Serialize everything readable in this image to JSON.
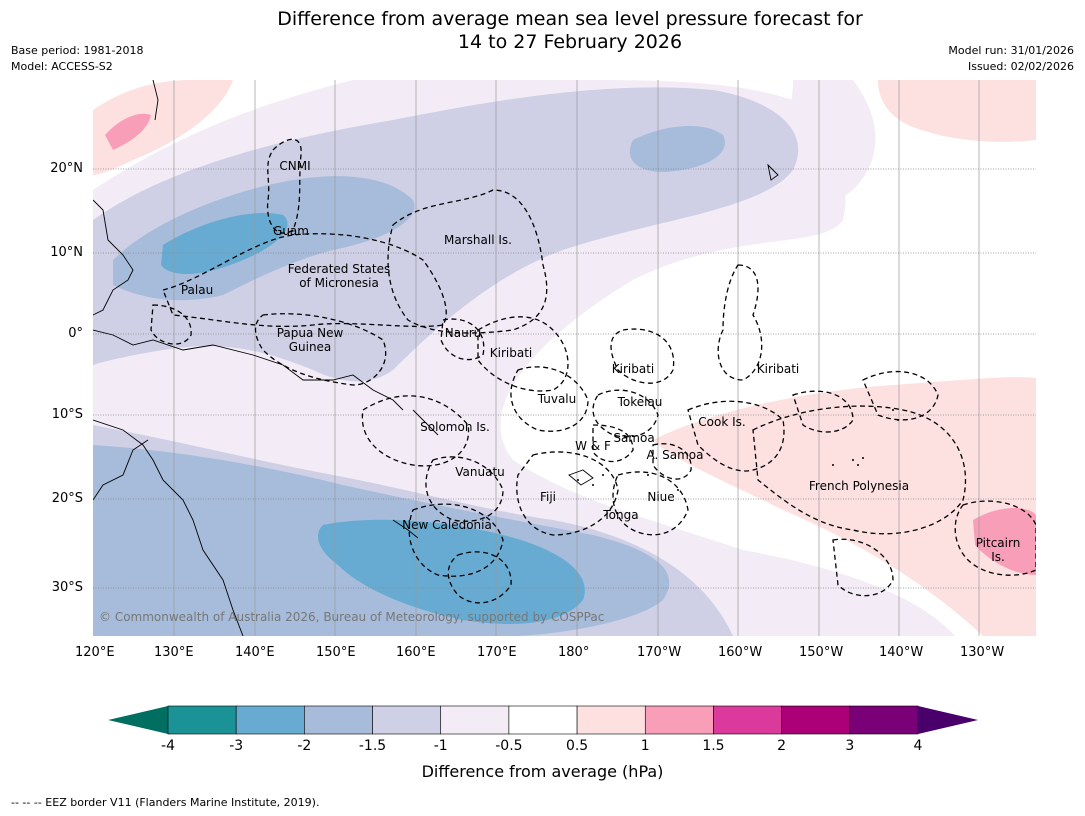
{
  "title_line1": "Difference from average mean sea level pressure forecast for",
  "title_line2": "14 to 27 February 2026",
  "meta_left": [
    "Base period: 1981-2018",
    "Model: ACCESS-S2"
  ],
  "meta_right": [
    "Model run: 31/01/2026",
    "Issued: 02/02/2026"
  ],
  "lon_labels": [
    "120°E",
    "130°E",
    "140°E",
    "150°E",
    "160°E",
    "170°E",
    "180°",
    "170°W",
    "160°W",
    "150°W",
    "140°W",
    "130°W"
  ],
  "lat_labels": [
    "20°N",
    "10°N",
    "0°",
    "10°S",
    "20°S",
    "30°S"
  ],
  "regions": [
    {
      "name": "CNMI"
    },
    {
      "name": "Guam"
    },
    {
      "name": "Marshall Is."
    },
    {
      "name": "Federated States\nof Micronesia"
    },
    {
      "name": "Palau"
    },
    {
      "name": "Papua New\nGuinea"
    },
    {
      "name": "Nauru"
    },
    {
      "name": "Kiribati"
    },
    {
      "name": "Kiribati"
    },
    {
      "name": "Kiribati"
    },
    {
      "name": "Tuvalu"
    },
    {
      "name": "Tokelau"
    },
    {
      "name": "Solomon Is."
    },
    {
      "name": "Cook Is."
    },
    {
      "name": "Samoa"
    },
    {
      "name": "W & F"
    },
    {
      "name": "A. Samoa"
    },
    {
      "name": "Vanuatu"
    },
    {
      "name": "Fiji"
    },
    {
      "name": "Niue"
    },
    {
      "name": "French Polynesia"
    },
    {
      "name": "Tonga"
    },
    {
      "name": "New Caledonia"
    },
    {
      "name": "Pitcairn\nIs."
    }
  ],
  "copyright": "© Commonwealth of Australia 2026, Bureau of Meteorology, supported by COSPPac",
  "colorbar": {
    "ticks": [
      "-4",
      "-3",
      "-2",
      "-1.5",
      "-1",
      "-0.5",
      "0.5",
      "1",
      "1.5",
      "2",
      "3",
      "4"
    ],
    "colors": [
      "#1b9396",
      "#67abd2",
      "#a6bcda",
      "#cfd0e6",
      "#f3ecf6",
      "#ffffff",
      "#fde0e0",
      "#f99eb8",
      "#db3a9c",
      "#ac0079",
      "#7a0077"
    ],
    "under_color": "#006e60",
    "over_color": "#49006a",
    "label": "Difference from average (hPa)"
  },
  "footnote": "--  --  -- EEZ border V11 (Flanders Marine Institute, 2019)."
}
